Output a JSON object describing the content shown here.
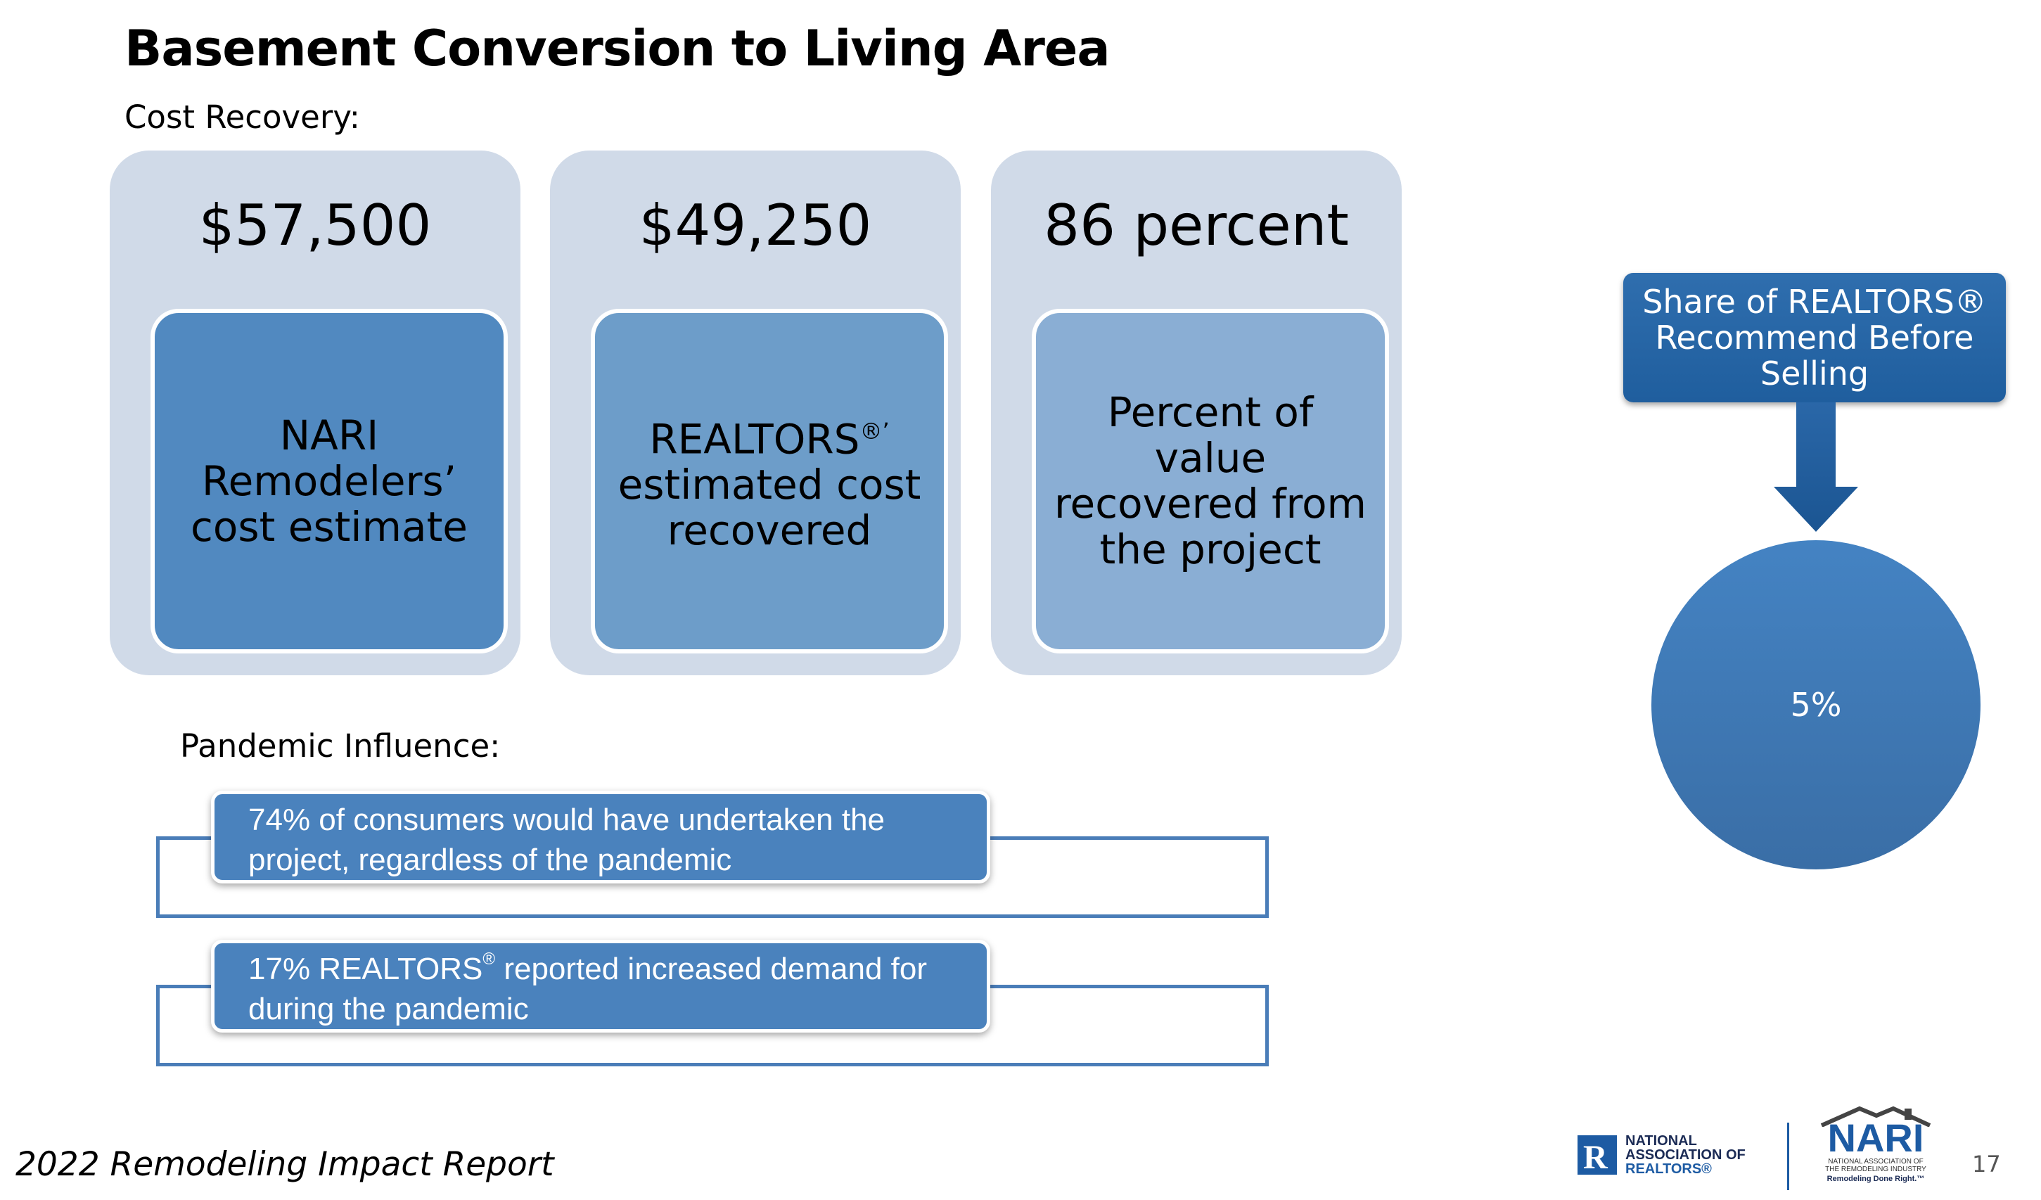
{
  "title": "Basement Conversion to Living Area",
  "cost_recovery_label": "Cost Recovery:",
  "cards": [
    {
      "value": "$57,500",
      "description": "NARI Remodelers’ cost estimate",
      "color": "#5189c0"
    },
    {
      "value": "$49,250",
      "description_pre": "REALTORS",
      "description_sup": "®’",
      "description_post": " estimated cost recovered",
      "color": "#6d9dc9"
    },
    {
      "value": "86 percent",
      "description": "Percent of value recovered from the project",
      "color": "#8aaed4"
    }
  ],
  "pandemic_label": "Pandemic Influence:",
  "pandemic_items": [
    {
      "text": "74% of consumers would have undertaken the project, regardless of the pandemic"
    },
    {
      "text_pre": "17% REALTORS",
      "text_sup": "®",
      "text_post": " reported increased demand for during the pandemic"
    }
  ],
  "callout": {
    "title": "Share of REALTORS® Recommend Before Selling",
    "value": "5%"
  },
  "footer": {
    "report_title": "2022 Remodeling Impact Report",
    "page_number": "17",
    "realtors_logo_lines": [
      "NATIONAL",
      "ASSOCIATION OF",
      "REALTORS®"
    ],
    "nari_logo": {
      "word": "NARI",
      "sub_lines": [
        "NATIONAL ASSOCIATION OF",
        "THE REMODELING INDUSTRY"
      ],
      "tagline": "Remodeling Done Right.™"
    }
  },
  "colors": {
    "card_background": "#d0dae8",
    "accent_blue": "#4a82bd",
    "callout_blue": "#1f5e9e"
  }
}
